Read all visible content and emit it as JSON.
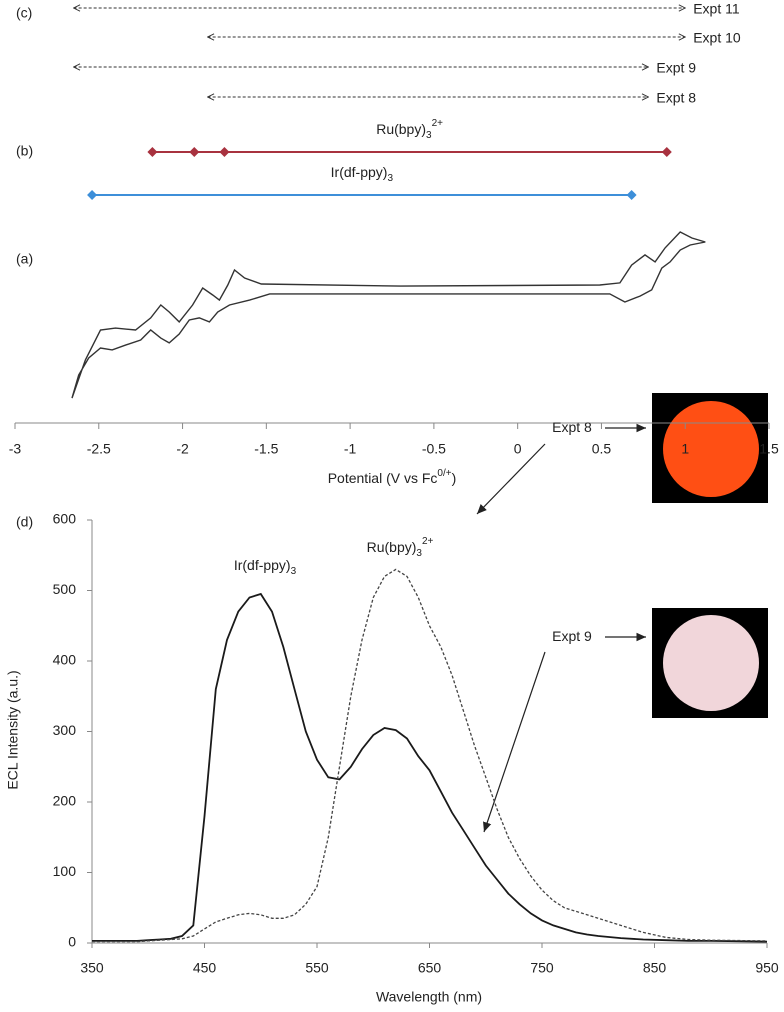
{
  "chart_data": [
    {
      "type": "line",
      "panel_labels": [
        "(c)",
        "(b)",
        "(a)"
      ],
      "xlabel": {
        "text": "Potential (V vs Fc",
        "sup": "0/+",
        "tail": ")"
      },
      "xlim": [
        -3,
        1.5
      ],
      "xticks": [
        -3,
        -2.5,
        -2,
        -1.5,
        -1,
        -0.5,
        0,
        0.5,
        1,
        1.5
      ],
      "ylim": [
        0,
        100
      ],
      "series": [
        {
          "color": "#333333",
          "x": [
            -2.66,
            -2.58,
            -2.49,
            -2.4,
            -2.28,
            -2.19,
            -2.13,
            -2.08,
            -2.02,
            -1.94,
            -1.88,
            -1.82,
            -1.78,
            -1.73,
            -1.69,
            -1.63,
            -1.53,
            -0.7,
            0.49,
            0.61,
            0.68,
            0.76,
            0.82,
            0.88,
            0.97,
            1.04,
            1.12,
            1.03,
            0.97,
            0.91,
            0.86,
            0.8,
            0.73,
            0.64,
            0.55,
            -0.7,
            -1.48,
            -1.6,
            -1.72,
            -1.79,
            -1.84,
            -1.9,
            -1.96,
            -2.02,
            -2.08,
            -2.13,
            -2.19,
            -2.25,
            -2.34,
            -2.42,
            -2.49,
            -2.56,
            -2.62,
            -2.66
          ],
          "values": [
            1.1,
            22.9,
            40,
            41.1,
            40,
            46.9,
            54.3,
            50.3,
            44.6,
            54.3,
            64,
            60,
            57.1,
            65.7,
            74.3,
            69.7,
            66.3,
            65.1,
            65.7,
            66.9,
            77.1,
            82.9,
            78.9,
            86.9,
            96,
            92.6,
            90.3,
            88.6,
            85.7,
            78.9,
            75.4,
            62.9,
            59.4,
            56,
            60.6,
            60.6,
            60.6,
            57.1,
            54.3,
            50.3,
            44.6,
            46.9,
            45.7,
            37.7,
            32.6,
            35.4,
            40,
            34.3,
            31.4,
            28.6,
            29.7,
            24,
            14.3,
            1.1
          ]
        }
      ],
      "couples": [
        {
          "label": {
            "text": "Ru(bpy)",
            "sub": "3",
            "sup": "2+"
          },
          "color": "#a8323f",
          "label_color": "#a8323f",
          "values": [
            -2.18,
            -1.93,
            -1.75,
            0.89
          ]
        },
        {
          "label": {
            "text": "Ir(df-ppy)",
            "sub": "3"
          },
          "color": "#3d8fd9",
          "label_color": "#39a6c6",
          "values": [
            -2.54,
            0.68
          ]
        }
      ],
      "experiments": [
        {
          "name": "Expt 11",
          "values": [
            -2.65,
            1.0
          ]
        },
        {
          "name": "Expt 10",
          "values": [
            -1.85,
            1.0
          ]
        },
        {
          "name": "Expt 9",
          "values": [
            -2.65,
            0.78
          ]
        },
        {
          "name": "Expt 8",
          "values": [
            -1.85,
            0.78
          ]
        }
      ]
    },
    {
      "type": "line",
      "panel_label": "(d)",
      "xlabel": "Wavelength (nm)",
      "ylabel": "ECL Intensity (a.u.)",
      "xlim": [
        350,
        950
      ],
      "xticks": [
        350,
        450,
        550,
        650,
        750,
        850,
        950
      ],
      "ylim": [
        0,
        600
      ],
      "yticks": [
        0,
        100,
        200,
        300,
        400,
        500,
        600
      ],
      "x": [
        350,
        360,
        370,
        380,
        390,
        400,
        410,
        420,
        430,
        440,
        450,
        460,
        470,
        480,
        490,
        500,
        510,
        520,
        530,
        540,
        550,
        560,
        570,
        580,
        590,
        600,
        610,
        620,
        630,
        640,
        650,
        660,
        670,
        680,
        690,
        700,
        710,
        720,
        730,
        740,
        750,
        760,
        770,
        780,
        790,
        800,
        820,
        840,
        860,
        880,
        900,
        950
      ],
      "series": [
        {
          "color": "#1a1a1a",
          "dash": false,
          "values": [
            3,
            3,
            3,
            3,
            3,
            4,
            5,
            6,
            10,
            25,
            180,
            360,
            430,
            470,
            490,
            495,
            470,
            420,
            360,
            300,
            260,
            235,
            232,
            250,
            275,
            295,
            305,
            302,
            290,
            265,
            245,
            215,
            185,
            160,
            135,
            110,
            90,
            70,
            55,
            42,
            32,
            25,
            20,
            15,
            12,
            10,
            7,
            5,
            4,
            3,
            3,
            2
          ]
        },
        {
          "color": "#444444",
          "dash": true,
          "values": [
            2,
            2,
            2,
            2,
            2,
            3,
            4,
            5,
            6,
            10,
            20,
            30,
            35,
            40,
            42,
            40,
            35,
            35,
            40,
            55,
            80,
            150,
            250,
            350,
            430,
            490,
            520,
            530,
            520,
            490,
            450,
            420,
            380,
            330,
            280,
            235,
            190,
            150,
            120,
            95,
            75,
            60,
            50,
            45,
            40,
            35,
            25,
            15,
            8,
            5,
            4,
            3
          ]
        }
      ],
      "annotations": [
        {
          "text": "Ir(df-ppy)",
          "sub": "3",
          "color": "#39a6c6"
        },
        {
          "text": "Ru(bpy)",
          "sub": "3",
          "sup": "2+",
          "color": "#a8323f"
        },
        {
          "text": "Expt  8",
          "color": "#222222"
        },
        {
          "text": "Expt  9",
          "color": "#222222"
        }
      ]
    }
  ]
}
